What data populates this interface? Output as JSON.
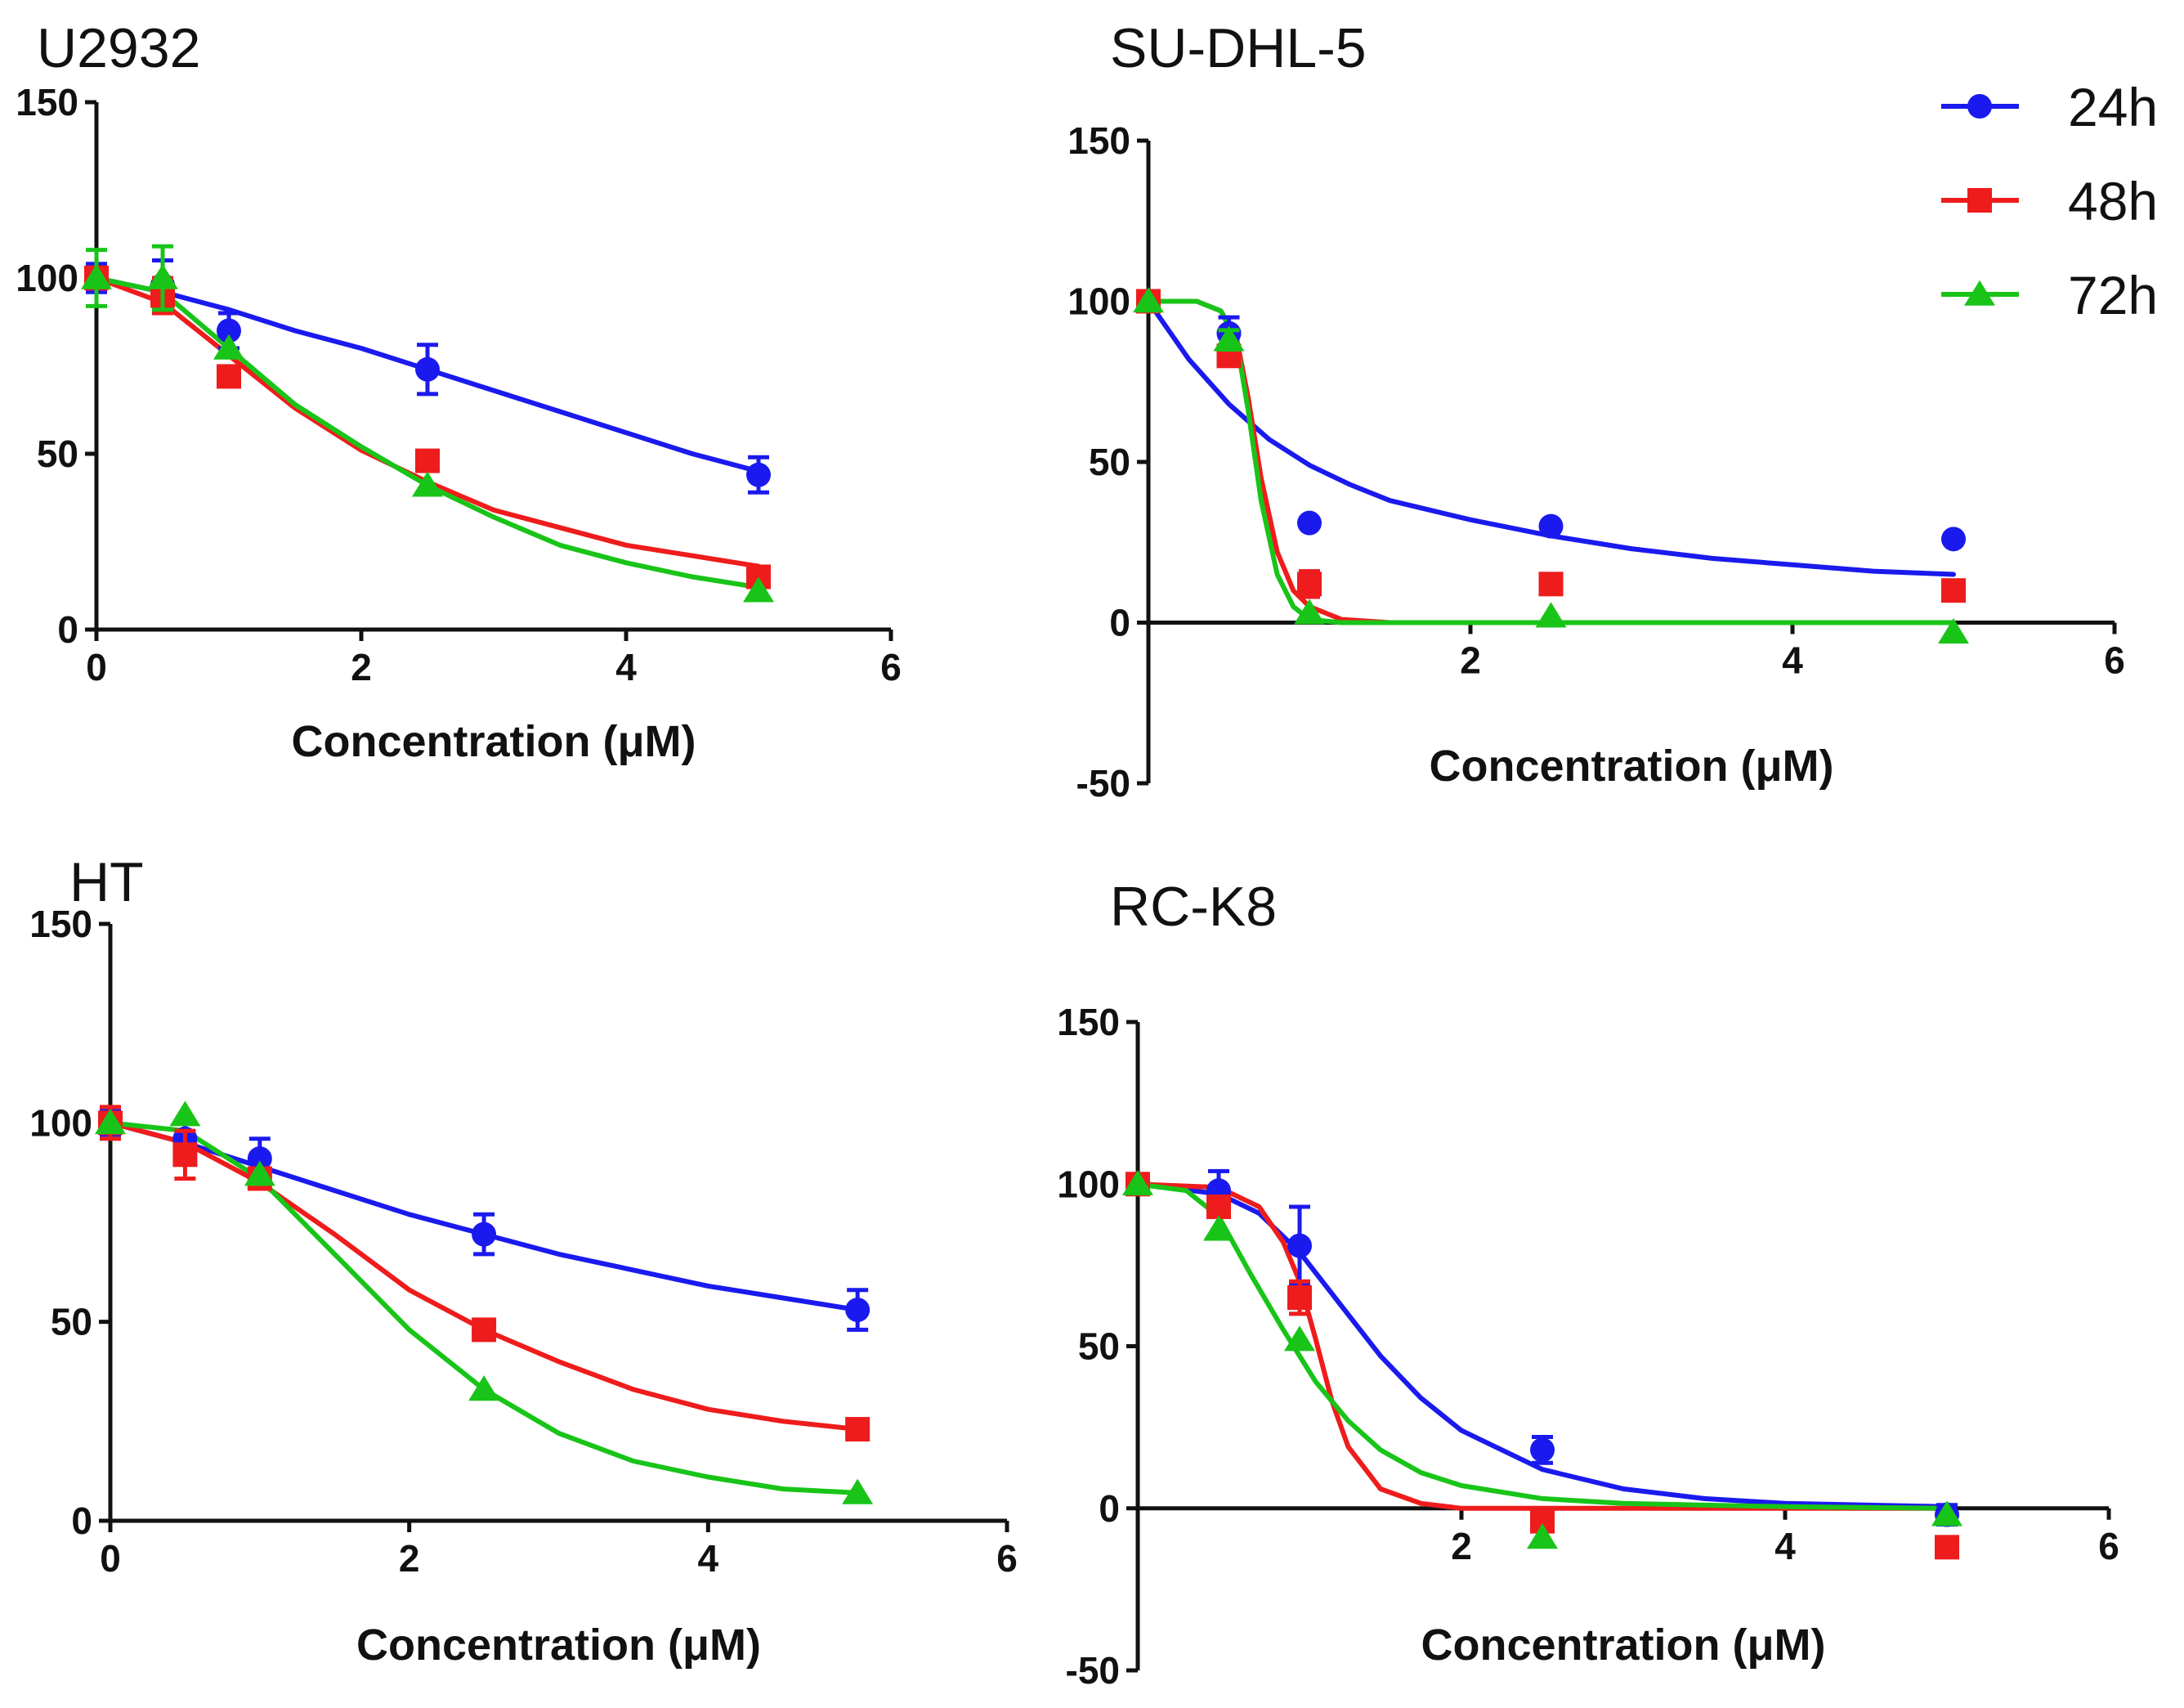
{
  "legend": {
    "position": "top-right",
    "entries": [
      {
        "label": "24h",
        "color": "#1a1aee",
        "marker": "circle"
      },
      {
        "label": "48h",
        "color": "#ee1c1c",
        "marker": "square"
      },
      {
        "label": "72h",
        "color": "#19c419",
        "marker": "triangle"
      }
    ]
  },
  "chart_data": [
    {
      "id": "u2932",
      "type": "scatter",
      "title": "U2932",
      "xlabel": "Concentration (μM)",
      "ylabel": "",
      "xlim": [
        0,
        6
      ],
      "ylim": [
        0,
        150
      ],
      "xticks": [
        0,
        2,
        4,
        6
      ],
      "xtick_labels": [
        "0",
        "2",
        "4",
        "6"
      ],
      "yticks": [
        0,
        50,
        100,
        150
      ],
      "ytick_labels": [
        "0",
        "50",
        "100",
        "150"
      ],
      "series": [
        {
          "name": "24h",
          "color": "#1a1aee",
          "marker": "circle",
          "x": [
            0,
            0.5,
            1,
            2.5,
            5
          ],
          "y": [
            100,
            98,
            85,
            74,
            44
          ],
          "err": [
            4,
            7,
            5,
            7,
            5
          ],
          "fit_x": [
            0,
            0.5,
            1,
            1.5,
            2,
            2.5,
            3,
            3.5,
            4,
            4.5,
            5
          ],
          "fit_y": [
            100,
            96,
            91,
            85,
            80,
            74,
            68,
            62,
            56,
            50,
            45
          ]
        },
        {
          "name": "48h",
          "color": "#ee1c1c",
          "marker": "square",
          "x": [
            0,
            0.5,
            1,
            2.5,
            5
          ],
          "y": [
            100,
            95,
            72,
            48,
            15
          ],
          "err": [
            3,
            5,
            0,
            0,
            0
          ],
          "fit_x": [
            0,
            0.5,
            1,
            1.5,
            2,
            2.5,
            3,
            3.5,
            4,
            4.5,
            5
          ],
          "fit_y": [
            100,
            93,
            78,
            63,
            51,
            42,
            34,
            29,
            24,
            21,
            18
          ]
        },
        {
          "name": "72h",
          "color": "#19c419",
          "marker": "triangle",
          "x": [
            0,
            0.5,
            1,
            2.5,
            5
          ],
          "y": [
            100,
            100,
            80,
            41,
            11
          ],
          "err": [
            8,
            9,
            0,
            0,
            0
          ],
          "fit_x": [
            0,
            0.5,
            1,
            1.5,
            2,
            2.5,
            3,
            3.5,
            4,
            4.5,
            5
          ],
          "fit_y": [
            100,
            96,
            80,
            64,
            52,
            41,
            32,
            24,
            19,
            15,
            12
          ]
        }
      ]
    },
    {
      "id": "sudhl5",
      "type": "scatter",
      "title": "SU-DHL-5",
      "xlabel": "Concentration (μM)",
      "ylabel": "",
      "xlim": [
        0,
        6
      ],
      "ylim": [
        -50,
        150
      ],
      "xticks": [
        2,
        4,
        6
      ],
      "xtick_labels": [
        "2",
        "4",
        "6"
      ],
      "yticks": [
        -50,
        0,
        50,
        100,
        150
      ],
      "ytick_labels": [
        "-50",
        "0",
        "50",
        "100",
        "150"
      ],
      "series": [
        {
          "name": "24h",
          "color": "#1a1aee",
          "marker": "circle",
          "x": [
            0,
            0.5,
            1,
            2.5,
            5
          ],
          "y": [
            100,
            90,
            31,
            30,
            26
          ],
          "err": [
            2,
            5,
            0,
            0,
            0
          ],
          "fit_x": [
            0,
            0.25,
            0.5,
            0.75,
            1,
            1.25,
            1.5,
            2,
            2.5,
            3,
            3.5,
            4,
            4.5,
            5
          ],
          "fit_y": [
            100,
            82,
            68,
            57,
            49,
            43,
            38,
            32,
            27,
            23,
            20,
            18,
            16,
            15
          ]
        },
        {
          "name": "48h",
          "color": "#ee1c1c",
          "marker": "square",
          "x": [
            0,
            0.5,
            1,
            2.5,
            5
          ],
          "y": [
            100,
            83,
            12,
            12,
            10
          ],
          "err": [
            0,
            3,
            4,
            0,
            0
          ],
          "fit_x": [
            0,
            0.3,
            0.45,
            0.55,
            0.62,
            0.7,
            0.8,
            0.9,
            1.0,
            1.2,
            1.5,
            2,
            3,
            4,
            5
          ],
          "fit_y": [
            100,
            100,
            97,
            88,
            70,
            45,
            22,
            10,
            5,
            1,
            0,
            0,
            0,
            0,
            0
          ]
        },
        {
          "name": "72h",
          "color": "#19c419",
          "marker": "triangle",
          "x": [
            0,
            0.5,
            1,
            2.5,
            5
          ],
          "y": [
            100,
            88,
            3,
            2,
            -3
          ],
          "err": [
            0,
            3,
            0,
            0,
            0
          ],
          "fit_x": [
            0,
            0.3,
            0.45,
            0.55,
            0.62,
            0.7,
            0.8,
            0.9,
            1.0,
            1.2,
            1.5,
            2,
            3,
            4,
            5
          ],
          "fit_y": [
            100,
            100,
            97,
            87,
            66,
            38,
            15,
            5,
            1,
            0,
            0,
            0,
            0,
            0,
            0
          ]
        }
      ]
    },
    {
      "id": "ht",
      "type": "scatter",
      "title": "HT",
      "xlabel": "Concentration (μM)",
      "ylabel": "",
      "xlim": [
        0,
        6
      ],
      "ylim": [
        0,
        150
      ],
      "xticks": [
        0,
        2,
        4,
        6
      ],
      "xtick_labels": [
        "0",
        "2",
        "4",
        "6"
      ],
      "yticks": [
        0,
        50,
        100,
        150
      ],
      "ytick_labels": [
        "0",
        "50",
        "100",
        "150"
      ],
      "series": [
        {
          "name": "24h",
          "color": "#1a1aee",
          "marker": "circle",
          "x": [
            0,
            0.5,
            1,
            2.5,
            5
          ],
          "y": [
            100,
            96,
            91,
            72,
            53
          ],
          "err": [
            3,
            4,
            5,
            5,
            5
          ],
          "fit_x": [
            0,
            0.5,
            1,
            1.5,
            2,
            2.5,
            3,
            3.5,
            4,
            4.5,
            5
          ],
          "fit_y": [
            100,
            95,
            89,
            83,
            77,
            72,
            67,
            63,
            59,
            56,
            53
          ]
        },
        {
          "name": "48h",
          "color": "#ee1c1c",
          "marker": "square",
          "x": [
            0,
            0.5,
            1,
            2.5,
            5
          ],
          "y": [
            100,
            92,
            86,
            48,
            23
          ],
          "err": [
            4,
            6,
            2,
            0,
            0
          ],
          "fit_x": [
            0,
            0.5,
            1,
            1.5,
            2,
            2.5,
            3,
            3.5,
            4,
            4.5,
            5
          ],
          "fit_y": [
            100,
            95,
            85,
            72,
            58,
            48,
            40,
            33,
            28,
            25,
            23
          ]
        },
        {
          "name": "72h",
          "color": "#19c419",
          "marker": "triangle",
          "x": [
            0,
            0.5,
            1,
            2.5,
            5
          ],
          "y": [
            100,
            102,
            87,
            33,
            7
          ],
          "err": [
            0,
            0,
            0,
            0,
            0
          ],
          "fit_x": [
            0,
            0.5,
            1,
            1.5,
            2,
            2.5,
            3,
            3.5,
            4,
            4.5,
            5
          ],
          "fit_y": [
            100,
            98,
            86,
            67,
            48,
            33,
            22,
            15,
            11,
            8,
            7
          ]
        }
      ]
    },
    {
      "id": "rck8",
      "type": "scatter",
      "title": "RC-K8",
      "xlabel": "Concentration (μM)",
      "ylabel": "",
      "xlim": [
        0,
        6
      ],
      "ylim": [
        -50,
        150
      ],
      "xticks": [
        2,
        4,
        6
      ],
      "xtick_labels": [
        "2",
        "4",
        "6"
      ],
      "yticks": [
        -50,
        0,
        50,
        100,
        150
      ],
      "ytick_labels": [
        "-50",
        "0",
        "50",
        "100",
        "150"
      ],
      "series": [
        {
          "name": "24h",
          "color": "#1a1aee",
          "marker": "circle",
          "x": [
            0,
            0.5,
            1,
            2.5,
            5
          ],
          "y": [
            100,
            98,
            81,
            18,
            -2
          ],
          "err": [
            3,
            6,
            12,
            4,
            3
          ],
          "fit_x": [
            0,
            0.5,
            0.75,
            1,
            1.25,
            1.5,
            1.75,
            2,
            2.5,
            3,
            3.5,
            4,
            5
          ],
          "fit_y": [
            100,
            97,
            91,
            79,
            63,
            47,
            34,
            24,
            12,
            6,
            3,
            1.5,
            0.5
          ]
        },
        {
          "name": "48h",
          "color": "#ee1c1c",
          "marker": "square",
          "x": [
            0,
            0.5,
            1,
            2.5,
            5
          ],
          "y": [
            100,
            93,
            65,
            -4,
            -12
          ],
          "err": [
            0,
            0,
            5,
            2,
            2
          ],
          "fit_x": [
            0,
            0.5,
            0.75,
            0.9,
            1.0,
            1.1,
            1.2,
            1.3,
            1.5,
            1.75,
            2,
            2.5,
            3,
            5
          ],
          "fit_y": [
            100,
            99,
            93,
            82,
            70,
            52,
            33,
            19,
            6,
            1.5,
            0,
            0,
            0,
            0
          ]
        },
        {
          "name": "72h",
          "color": "#19c419",
          "marker": "triangle",
          "x": [
            0,
            0.5,
            1,
            2.5,
            5
          ],
          "y": [
            100,
            86,
            52,
            -9,
            -2
          ],
          "err": [
            0,
            0,
            0,
            0,
            0
          ],
          "fit_x": [
            0,
            0.3,
            0.5,
            0.7,
            0.9,
            1.0,
            1.1,
            1.3,
            1.5,
            1.75,
            2,
            2.5,
            3,
            4,
            5
          ],
          "fit_y": [
            100,
            98,
            90,
            72,
            55,
            47,
            39,
            27,
            18,
            11,
            7,
            3,
            1.5,
            0.5,
            0
          ]
        }
      ]
    }
  ]
}
